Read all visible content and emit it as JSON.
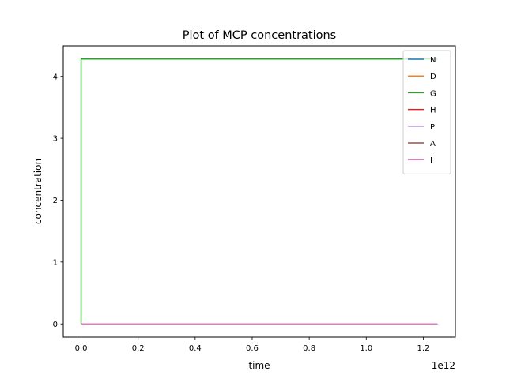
{
  "chart_data": {
    "type": "line",
    "title": "Plot of MCP concentrations",
    "xlabel": "time",
    "ylabel": "concentration",
    "x_offset_label": "1e12",
    "xlim": [
      -0.0625,
      1.3125
    ],
    "ylim": [
      -0.214,
      4.494
    ],
    "x_ticks": [
      0.0,
      0.2,
      0.4,
      0.6,
      0.8,
      1.0,
      1.2
    ],
    "x_tick_labels": [
      "0.0",
      "0.2",
      "0.4",
      "0.6",
      "0.8",
      "1.0",
      "1.2"
    ],
    "y_ticks": [
      0,
      1,
      2,
      3,
      4
    ],
    "y_tick_labels": [
      "0",
      "1",
      "2",
      "3",
      "4"
    ],
    "grid": false,
    "legend_position": "top-right",
    "series": [
      {
        "name": "N",
        "color": "#1f77b4",
        "x": [
          0.0,
          1.25
        ],
        "y": [
          0.0,
          0.0
        ]
      },
      {
        "name": "D",
        "color": "#ff7f0e",
        "x": [
          0.0,
          1.25
        ],
        "y": [
          0.0,
          0.0
        ]
      },
      {
        "name": "G",
        "color": "#2ca02c",
        "x": [
          0.0,
          0.0,
          1.25
        ],
        "y": [
          0.0,
          4.28,
          4.28
        ]
      },
      {
        "name": "H",
        "color": "#d62728",
        "x": [
          0.0,
          1.25
        ],
        "y": [
          0.0,
          0.0
        ]
      },
      {
        "name": "P",
        "color": "#9467bd",
        "x": [
          0.0,
          1.25
        ],
        "y": [
          0.0,
          0.0
        ]
      },
      {
        "name": "A",
        "color": "#8c564b",
        "x": [
          0.0,
          1.25
        ],
        "y": [
          0.0,
          0.0
        ]
      },
      {
        "name": "I",
        "color": "#e377c2",
        "x": [
          0.0,
          1.25
        ],
        "y": [
          0.0,
          0.0
        ]
      }
    ]
  }
}
